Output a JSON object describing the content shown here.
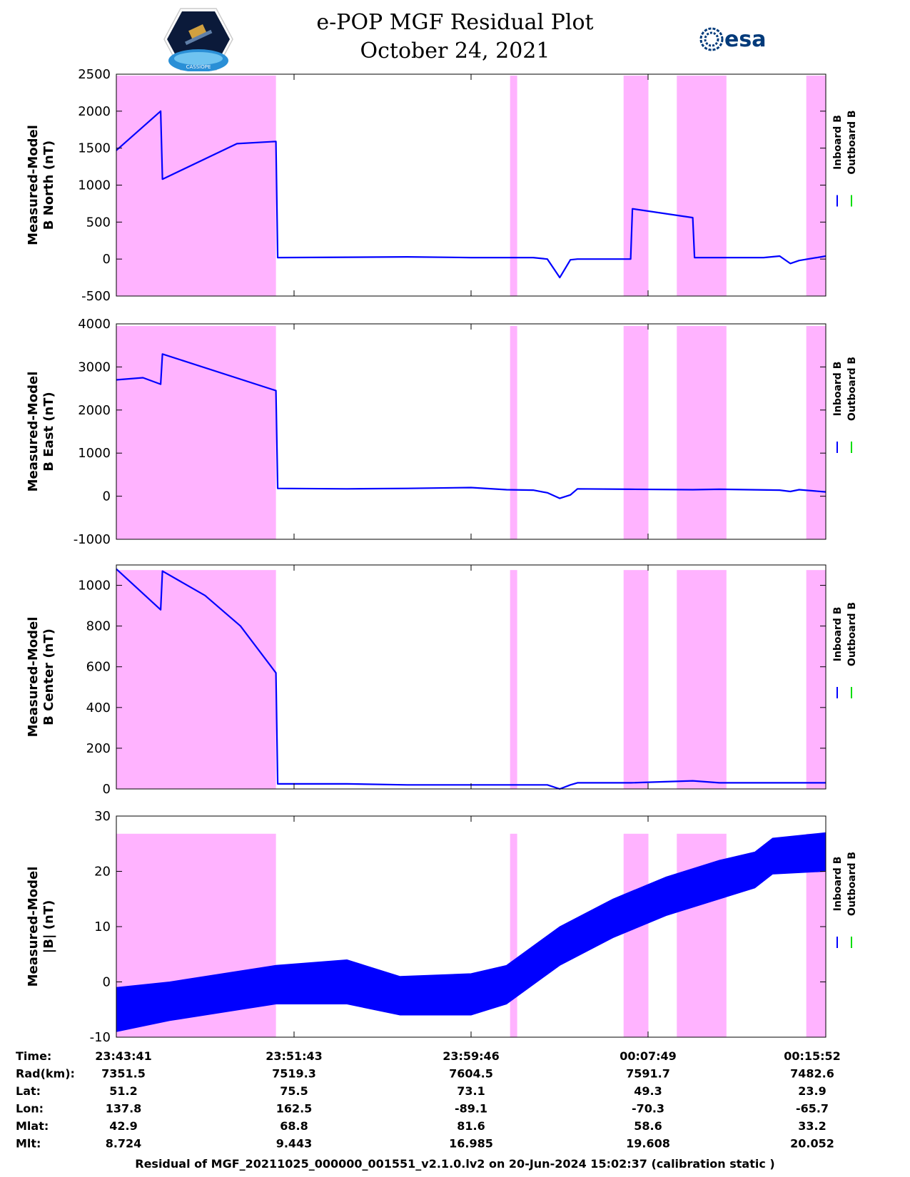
{
  "title": "e-POP MGF Residual Plot",
  "date": "October 24, 2021",
  "logos": {
    "left": "CASSIOPE",
    "right": "esa"
  },
  "colors": {
    "inboard": "#0000ff",
    "outboard": "#00dd00",
    "shade": "#ffb3ff",
    "axis": "#000000"
  },
  "legend": {
    "inboard": "Inboard B",
    "outboard": "Outboard B"
  },
  "chart_data": [
    {
      "type": "line",
      "panel": "north",
      "ylabel_line1": "Measured-Model",
      "ylabel_line2": "B North (nT)",
      "ylim": [
        -500,
        2500
      ],
      "yticks": [
        -500,
        0,
        500,
        1000,
        1500,
        2000,
        2500
      ],
      "shade_top": 2480,
      "series": [
        {
          "name": "Inboard B",
          "x": [
            0,
            2.5,
            2.6,
            6.8,
            9.0,
            9.1,
            13.0,
            16.4,
            20.0,
            23.5,
            24.3,
            25.0,
            25.6,
            26.0,
            29.0,
            29.1,
            32.5,
            32.6,
            36.5,
            37.4,
            38.0,
            38.5,
            40.0
          ],
          "y": [
            1470,
            2000,
            1080,
            1560,
            1590,
            20,
            25,
            30,
            20,
            20,
            0,
            -250,
            -10,
            0,
            0,
            680,
            560,
            20,
            20,
            40,
            -60,
            -20,
            40
          ]
        }
      ]
    },
    {
      "type": "line",
      "panel": "east",
      "ylabel_line1": "Measured-Model",
      "ylabel_line2": "B East (nT)",
      "ylim": [
        -1000,
        4000
      ],
      "yticks": [
        -1000,
        0,
        1000,
        2000,
        3000,
        4000
      ],
      "shade_top": 3950,
      "series": [
        {
          "name": "Inboard B",
          "x": [
            0,
            1.5,
            2.5,
            2.6,
            9.0,
            9.1,
            13.0,
            16.4,
            20.0,
            22.0,
            23.5,
            24.3,
            25.0,
            25.6,
            26.0,
            29.0,
            32.5,
            34.0,
            37.4,
            38.0,
            38.5,
            40.0
          ],
          "y": [
            2700,
            2750,
            2600,
            3300,
            2450,
            180,
            170,
            180,
            200,
            150,
            140,
            80,
            -50,
            30,
            170,
            160,
            150,
            160,
            140,
            110,
            150,
            100
          ]
        }
      ]
    },
    {
      "type": "line",
      "panel": "center",
      "ylabel_line1": "Measured-Model",
      "ylabel_line2": "B Center (nT)",
      "ylim": [
        0,
        1100
      ],
      "yticks": [
        0,
        200,
        400,
        600,
        800,
        1000
      ],
      "shade_top": 1075,
      "series": [
        {
          "name": "Inboard B",
          "x": [
            0,
            2.5,
            2.6,
            5.0,
            7.0,
            9.0,
            9.1,
            13.0,
            16.4,
            20.0,
            24.3,
            25.0,
            25.6,
            26.0,
            29.0,
            32.5,
            34.0,
            40.0
          ],
          "y": [
            1080,
            880,
            1070,
            950,
            800,
            570,
            25,
            25,
            20,
            20,
            20,
            0,
            20,
            30,
            30,
            40,
            30,
            30
          ]
        }
      ]
    },
    {
      "type": "area",
      "panel": "total",
      "ylabel_line1": "Measured-Model",
      "ylabel_line2": "|B| (nT)",
      "ylim": [
        -10,
        30
      ],
      "yticks": [
        -10,
        0,
        10,
        20,
        30
      ],
      "shade_top": 26.8,
      "series": [
        {
          "name": "Inboard B upper",
          "x": [
            0,
            3,
            7,
            9,
            13,
            16,
            20,
            22,
            25,
            28,
            31,
            34,
            36,
            37,
            40
          ],
          "y": [
            -1,
            0,
            2,
            3,
            4,
            1,
            1.5,
            3,
            10,
            15,
            19,
            22,
            23.5,
            26,
            27
          ]
        },
        {
          "name": "Inboard B lower",
          "x": [
            0,
            3,
            7,
            9,
            13,
            16,
            20,
            22,
            25,
            28,
            31,
            34,
            36,
            37,
            40
          ],
          "y": [
            -9,
            -7,
            -5,
            -4,
            -4,
            -6,
            -6,
            -4,
            3,
            8,
            12,
            15,
            17,
            19.5,
            20
          ]
        }
      ]
    }
  ],
  "shaded_intervals": [
    [
      0,
      9.0
    ],
    [
      22.2,
      22.6
    ],
    [
      28.6,
      30.0
    ],
    [
      31.6,
      34.4
    ],
    [
      38.9,
      40.0
    ]
  ],
  "time_ticks": [
    "23:43:41",
    "23:51:43",
    "23:59:46",
    "00:07:49",
    "00:15:52"
  ],
  "info_rows": [
    {
      "label": "Time:",
      "values": [
        "23:43:41",
        "23:51:43",
        "23:59:46",
        "00:07:49",
        "00:15:52"
      ]
    },
    {
      "label": "Rad(km):",
      "values": [
        "7351.5",
        "7519.3",
        "7604.5",
        "7591.7",
        "7482.6"
      ]
    },
    {
      "label": "Lat:",
      "values": [
        "51.2",
        "75.5",
        "73.1",
        "49.3",
        "23.9"
      ]
    },
    {
      "label": "Lon:",
      "values": [
        "137.8",
        "162.5",
        "-89.1",
        "-70.3",
        "-65.7"
      ]
    },
    {
      "label": "Mlat:",
      "values": [
        "42.9",
        "68.8",
        "81.6",
        "58.6",
        "33.2"
      ]
    },
    {
      "label": "Mlt:",
      "values": [
        "8.724",
        "9.443",
        "16.985",
        "19.608",
        "20.052"
      ]
    }
  ],
  "footer": "Residual of MGF_20211025_000000_001551_v2.1.0.lv2 on 20-Jun-2024 15:02:37 (calibration static )"
}
